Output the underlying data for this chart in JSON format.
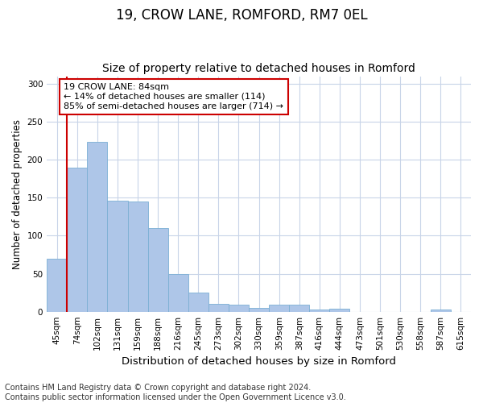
{
  "title": "19, CROW LANE, ROMFORD, RM7 0EL",
  "subtitle": "Size of property relative to detached houses in Romford",
  "xlabel": "Distribution of detached houses by size in Romford",
  "ylabel": "Number of detached properties",
  "categories": [
    "45sqm",
    "74sqm",
    "102sqm",
    "131sqm",
    "159sqm",
    "188sqm",
    "216sqm",
    "245sqm",
    "273sqm",
    "302sqm",
    "330sqm",
    "359sqm",
    "387sqm",
    "416sqm",
    "444sqm",
    "473sqm",
    "501sqm",
    "530sqm",
    "558sqm",
    "587sqm",
    "615sqm"
  ],
  "values": [
    70,
    190,
    224,
    146,
    145,
    110,
    50,
    25,
    10,
    9,
    5,
    9,
    9,
    3,
    4,
    0,
    0,
    0,
    0,
    3,
    0
  ],
  "bar_color": "#aec6e8",
  "bar_edge_color": "#7bafd4",
  "vline_x": 0.5,
  "vline_color": "#cc0000",
  "annotation_text": "19 CROW LANE: 84sqm\n← 14% of detached houses are smaller (114)\n85% of semi-detached houses are larger (714) →",
  "annotation_box_color": "#ffffff",
  "annotation_box_edge_color": "#cc0000",
  "ylim": [
    0,
    310
  ],
  "yticks": [
    0,
    50,
    100,
    150,
    200,
    250,
    300
  ],
  "footer_text": "Contains HM Land Registry data © Crown copyright and database right 2024.\nContains public sector information licensed under the Open Government Licence v3.0.",
  "bg_color": "#ffffff",
  "grid_color": "#c8d4e8",
  "title_fontsize": 12,
  "subtitle_fontsize": 10,
  "xlabel_fontsize": 9.5,
  "ylabel_fontsize": 8.5,
  "tick_fontsize": 7.5,
  "footer_fontsize": 7,
  "ann_fontsize": 8
}
